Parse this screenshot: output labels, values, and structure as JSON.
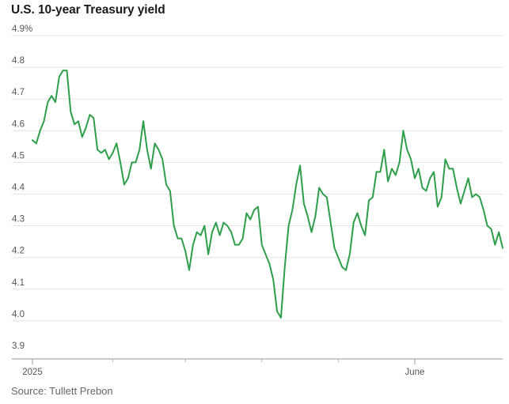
{
  "chart_data": {
    "type": "line",
    "title": "U.S. 10-year Treasury yield",
    "source": "Source: Tullett Prebon",
    "xlabel": "",
    "ylabel": "",
    "ylim": [
      3.9,
      4.9
    ],
    "y_ticks": [
      3.9,
      4.0,
      4.1,
      4.2,
      4.3,
      4.4,
      4.5,
      4.6,
      4.7,
      4.8,
      4.9
    ],
    "y_tick_labels": [
      "3.9",
      "4.0",
      "4.1",
      "4.2",
      "4.3",
      "4.4",
      "4.5",
      "4.6",
      "4.7",
      "4.8",
      "4.9%"
    ],
    "x_tick_labels": [
      {
        "label": "2025",
        "index": 0
      },
      {
        "label": "June",
        "index": 100
      }
    ],
    "x_minor_tick_indices": [
      21,
      40,
      60,
      80
    ],
    "grid": true,
    "series": [
      {
        "name": "U.S. 10-year Treasury yield",
        "color": "#2e9e4a",
        "values": [
          4.57,
          4.56,
          4.6,
          4.63,
          4.69,
          4.71,
          4.69,
          4.77,
          4.79,
          4.79,
          4.66,
          4.62,
          4.63,
          4.58,
          4.61,
          4.65,
          4.64,
          4.54,
          4.53,
          4.54,
          4.51,
          4.53,
          4.56,
          4.5,
          4.43,
          4.45,
          4.5,
          4.5,
          4.54,
          4.63,
          4.54,
          4.48,
          4.56,
          4.54,
          4.51,
          4.43,
          4.41,
          4.3,
          4.26,
          4.26,
          4.22,
          4.16,
          4.24,
          4.28,
          4.27,
          4.3,
          4.21,
          4.28,
          4.31,
          4.27,
          4.31,
          4.3,
          4.28,
          4.24,
          4.24,
          4.26,
          4.34,
          4.32,
          4.35,
          4.36,
          4.24,
          4.21,
          4.18,
          4.13,
          4.03,
          4.01,
          4.17,
          4.3,
          4.35,
          4.43,
          4.49,
          4.37,
          4.33,
          4.28,
          4.33,
          4.42,
          4.4,
          4.39,
          4.31,
          4.23,
          4.2,
          4.17,
          4.16,
          4.21,
          4.31,
          4.34,
          4.3,
          4.27,
          4.38,
          4.39,
          4.47,
          4.47,
          4.54,
          4.44,
          4.48,
          4.46,
          4.5,
          4.6,
          4.54,
          4.51,
          4.45,
          4.48,
          4.42,
          4.41,
          4.45,
          4.47,
          4.36,
          4.39,
          4.51,
          4.48,
          4.48,
          4.42,
          4.37,
          4.41,
          4.45,
          4.39,
          4.4,
          4.39,
          4.35,
          4.3,
          4.29,
          4.24,
          4.28,
          4.23
        ]
      }
    ]
  }
}
